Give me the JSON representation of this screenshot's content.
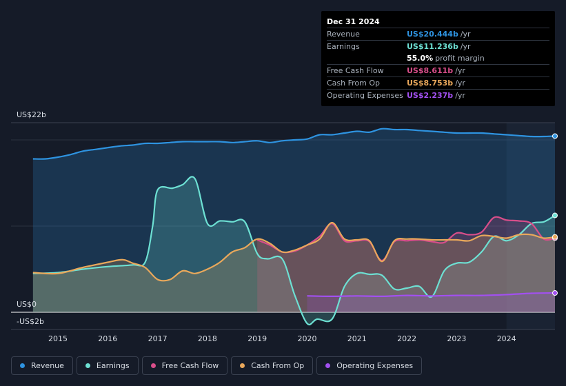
{
  "tooltip": {
    "date": "Dec 31 2024",
    "rows": [
      {
        "label": "Revenue",
        "value": "US$20.444b",
        "unit": "/yr",
        "color": "#2e93e0"
      },
      {
        "label": "Earnings",
        "value": "US$11.236b",
        "unit": "/yr",
        "color": "#6de0d3"
      },
      {
        "label": "",
        "value": "55.0%",
        "unit": "profit margin",
        "color": "#ffffff"
      },
      {
        "label": "Free Cash Flow",
        "value": "US$8.611b",
        "unit": "/yr",
        "color": "#d84e8a"
      },
      {
        "label": "Cash From Op",
        "value": "US$8.753b",
        "unit": "/yr",
        "color": "#e9a85b"
      },
      {
        "label": "Operating Expenses",
        "value": "US$2.237b",
        "unit": "/yr",
        "color": "#a250f0"
      }
    ]
  },
  "chart_data": {
    "type": "area",
    "ylabels": {
      "top": "US$22b",
      "zero": "US$0",
      "bottom": "-US$2b"
    },
    "ylim": [
      -2,
      22
    ],
    "x_ticks": [
      "2015",
      "2016",
      "2017",
      "2018",
      "2019",
      "2020",
      "2021",
      "2022",
      "2023",
      "2024"
    ],
    "series": [
      {
        "name": "Revenue",
        "color": "#2e93e0",
        "x": [
          2014.5,
          2014.75,
          2015,
          2015.25,
          2015.5,
          2015.75,
          2016,
          2016.25,
          2016.5,
          2016.75,
          2017,
          2017.25,
          2017.5,
          2017.75,
          2018,
          2018.25,
          2018.5,
          2018.75,
          2019,
          2019.25,
          2019.5,
          2019.75,
          2020,
          2020.25,
          2020.5,
          2020.75,
          2021,
          2021.25,
          2021.5,
          2021.75,
          2022,
          2022.25,
          2022.5,
          2022.75,
          2023,
          2023.25,
          2023.5,
          2023.75,
          2024,
          2024.25,
          2024.5,
          2024.75,
          2025
        ],
        "values": [
          17.8,
          17.8,
          18.0,
          18.3,
          18.7,
          18.9,
          19.1,
          19.3,
          19.4,
          19.6,
          19.6,
          19.7,
          19.8,
          19.8,
          19.8,
          19.8,
          19.7,
          19.8,
          19.9,
          19.7,
          19.9,
          20.0,
          20.1,
          20.6,
          20.6,
          20.8,
          21.0,
          20.9,
          21.3,
          21.2,
          21.2,
          21.1,
          21.0,
          20.9,
          20.8,
          20.8,
          20.8,
          20.7,
          20.6,
          20.5,
          20.4,
          20.4,
          20.444
        ]
      },
      {
        "name": "Earnings",
        "color": "#6de0d3",
        "x": [
          2014.5,
          2015,
          2015.5,
          2016,
          2016.5,
          2016.75,
          2016.9,
          2017,
          2017.3,
          2017.5,
          2017.75,
          2018,
          2018.25,
          2018.5,
          2018.75,
          2019,
          2019.2,
          2019.5,
          2019.75,
          2020,
          2020.2,
          2020.5,
          2020.75,
          2021,
          2021.25,
          2021.5,
          2021.75,
          2022,
          2022.25,
          2022.5,
          2022.75,
          2023,
          2023.25,
          2023.5,
          2023.75,
          2024,
          2024.25,
          2024.5,
          2024.75,
          2025
        ],
        "values": [
          4.5,
          4.6,
          5.0,
          5.3,
          5.5,
          5.8,
          10.0,
          14.2,
          14.4,
          14.8,
          15.5,
          10.3,
          10.6,
          10.5,
          10.5,
          6.8,
          6.2,
          6.2,
          2.0,
          -1.3,
          -0.8,
          -0.8,
          3.0,
          4.5,
          4.4,
          4.3,
          2.7,
          2.8,
          3.0,
          1.8,
          4.8,
          5.7,
          5.8,
          7.0,
          8.8,
          8.3,
          9.0,
          10.3,
          10.5,
          11.236
        ]
      },
      {
        "name": "Free Cash Flow",
        "color": "#d84e8a",
        "x": [
          2019,
          2019.25,
          2019.5,
          2019.75,
          2020,
          2020.25,
          2020.5,
          2020.75,
          2021,
          2021.25,
          2021.5,
          2021.75,
          2022,
          2022.25,
          2022.5,
          2022.75,
          2023,
          2023.25,
          2023.5,
          2023.75,
          2024,
          2024.25,
          2024.5,
          2024.75,
          2025
        ],
        "values": [
          8.4,
          7.8,
          7.0,
          7.1,
          7.8,
          8.8,
          10.3,
          8.3,
          8.3,
          8.2,
          6.0,
          8.2,
          8.3,
          8.4,
          8.2,
          8.1,
          9.2,
          9.0,
          9.3,
          11.0,
          10.7,
          10.6,
          10.3,
          8.5,
          8.611
        ]
      },
      {
        "name": "Cash From Op",
        "color": "#e9a85b",
        "x": [
          2014.5,
          2015,
          2015.5,
          2016,
          2016.3,
          2016.5,
          2016.75,
          2017,
          2017.25,
          2017.5,
          2017.75,
          2018,
          2018.25,
          2018.5,
          2018.75,
          2019,
          2019.25,
          2019.5,
          2019.75,
          2020,
          2020.25,
          2020.5,
          2020.75,
          2021,
          2021.25,
          2021.5,
          2021.75,
          2022,
          2022.25,
          2022.5,
          2022.75,
          2023,
          2023.25,
          2023.5,
          2023.75,
          2024,
          2024.25,
          2024.5,
          2024.75,
          2025
        ],
        "values": [
          4.6,
          4.5,
          5.2,
          5.8,
          6.1,
          5.7,
          5.2,
          3.8,
          3.8,
          4.8,
          4.5,
          5.0,
          5.8,
          7.0,
          7.5,
          8.5,
          8.0,
          7.0,
          7.2,
          7.8,
          8.5,
          10.4,
          8.5,
          8.4,
          8.3,
          5.9,
          8.3,
          8.5,
          8.5,
          8.4,
          8.4,
          8.4,
          8.3,
          8.9,
          8.8,
          8.6,
          9.0,
          9.0,
          8.6,
          8.753
        ]
      },
      {
        "name": "Operating Expenses",
        "color": "#a250f0",
        "x": [
          2020,
          2020.5,
          2021,
          2021.5,
          2022,
          2022.5,
          2023,
          2023.5,
          2024,
          2024.5,
          2025
        ],
        "values": [
          1.9,
          1.85,
          1.9,
          1.85,
          1.95,
          1.9,
          1.95,
          1.95,
          2.05,
          2.2,
          2.237
        ]
      }
    ]
  },
  "legend": [
    {
      "label": "Revenue",
      "color": "#2e93e0"
    },
    {
      "label": "Earnings",
      "color": "#6de0d3"
    },
    {
      "label": "Free Cash Flow",
      "color": "#d84e8a"
    },
    {
      "label": "Cash From Op",
      "color": "#e9a85b"
    },
    {
      "label": "Operating Expenses",
      "color": "#a250f0"
    }
  ]
}
